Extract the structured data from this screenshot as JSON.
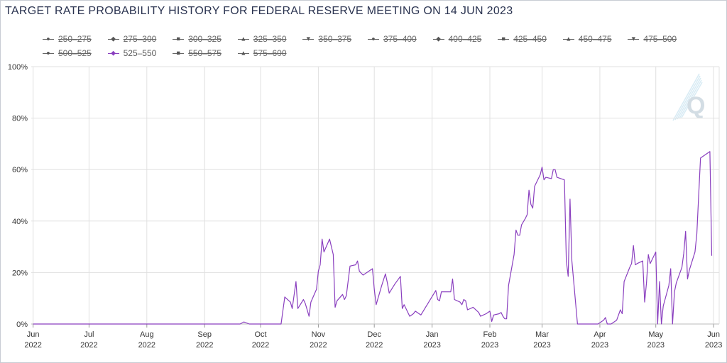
{
  "chart_data": {
    "type": "line",
    "title": "TARGET RATE PROBABILITY HISTORY FOR FEDERAL RESERVE MEETING ON 14 JUN 2023",
    "ylim": [
      0,
      100
    ],
    "yticks": [
      "0%",
      "20%",
      "40%",
      "60%",
      "80%",
      "100%"
    ],
    "ytick_values": [
      0,
      20,
      40,
      60,
      80,
      100
    ],
    "xlim": [
      "2022-05-31",
      "2023-06-04"
    ],
    "xticks": [
      {
        "date": "2022-06-01",
        "line1": "Jun",
        "line2": "2022"
      },
      {
        "date": "2022-07-01",
        "line1": "Jul",
        "line2": "2022"
      },
      {
        "date": "2022-08-01",
        "line1": "Aug",
        "line2": "2022"
      },
      {
        "date": "2022-09-01",
        "line1": "Sep",
        "line2": "2022"
      },
      {
        "date": "2022-10-01",
        "line1": "Oct",
        "line2": "2022"
      },
      {
        "date": "2022-11-01",
        "line1": "Nov",
        "line2": "2022"
      },
      {
        "date": "2022-12-01",
        "line1": "Dec",
        "line2": "2022"
      },
      {
        "date": "2023-01-01",
        "line1": "Jan",
        "line2": "2023"
      },
      {
        "date": "2023-02-01",
        "line1": "Feb",
        "line2": "2023"
      },
      {
        "date": "2023-03-01",
        "line1": "Mar",
        "line2": "2023"
      },
      {
        "date": "2023-04-01",
        "line1": "Apr",
        "line2": "2023"
      },
      {
        "date": "2023-05-01",
        "line1": "May",
        "line2": "2023"
      },
      {
        "date": "2023-06-01",
        "line1": "Jun",
        "line2": "2023"
      }
    ],
    "grid": true,
    "legend_position": "top",
    "legend": [
      {
        "label": "250–275",
        "marker": "circle",
        "visible": false
      },
      {
        "label": "275–300",
        "marker": "diamond",
        "visible": false
      },
      {
        "label": "300–325",
        "marker": "square",
        "visible": false
      },
      {
        "label": "325–350",
        "marker": "triangle",
        "visible": false
      },
      {
        "label": "350–375",
        "marker": "triangle-down",
        "visible": false
      },
      {
        "label": "375–400",
        "marker": "circle",
        "visible": false
      },
      {
        "label": "400–425",
        "marker": "diamond",
        "visible": false
      },
      {
        "label": "425–450",
        "marker": "square",
        "visible": false
      },
      {
        "label": "450–475",
        "marker": "triangle",
        "visible": false
      },
      {
        "label": "475–500",
        "marker": "triangle-down",
        "visible": false
      },
      {
        "label": "500–525",
        "marker": "circle",
        "visible": false
      },
      {
        "label": "525–550",
        "marker": "diamond",
        "visible": true
      },
      {
        "label": "550–575",
        "marker": "square",
        "visible": false
      },
      {
        "label": "575–600",
        "marker": "triangle",
        "visible": false
      }
    ],
    "colors": {
      "series": "#8a3fbf",
      "grid": "#e0e0e0",
      "axis": "#c8ccd4",
      "title": "#2a3350"
    },
    "series": [
      {
        "name": "525–550",
        "points": [
          [
            "2022-06-01",
            0
          ],
          [
            "2022-07-01",
            0
          ],
          [
            "2022-08-01",
            0
          ],
          [
            "2022-09-01",
            0
          ],
          [
            "2022-09-20",
            0
          ],
          [
            "2022-09-22",
            0.8
          ],
          [
            "2022-09-25",
            0
          ],
          [
            "2022-10-01",
            0
          ],
          [
            "2022-10-12",
            0
          ],
          [
            "2022-10-14",
            10.5
          ],
          [
            "2022-10-17",
            8.5
          ],
          [
            "2022-10-18",
            6
          ],
          [
            "2022-10-20",
            16.5
          ],
          [
            "2022-10-21",
            6
          ],
          [
            "2022-10-24",
            9.5
          ],
          [
            "2022-10-25",
            8
          ],
          [
            "2022-10-27",
            3
          ],
          [
            "2022-10-28",
            8.5
          ],
          [
            "2022-10-31",
            13.5
          ],
          [
            "2022-11-01",
            20.5
          ],
          [
            "2022-11-02",
            23
          ],
          [
            "2022-11-03",
            33
          ],
          [
            "2022-11-04",
            28
          ],
          [
            "2022-11-07",
            33
          ],
          [
            "2022-11-09",
            27
          ],
          [
            "2022-11-10",
            6.5
          ],
          [
            "2022-11-11",
            9
          ],
          [
            "2022-11-14",
            11.5
          ],
          [
            "2022-11-15",
            9.5
          ],
          [
            "2022-11-16",
            11
          ],
          [
            "2022-11-18",
            22.5
          ],
          [
            "2022-11-21",
            23
          ],
          [
            "2022-11-22",
            24.5
          ],
          [
            "2022-11-23",
            20.5
          ],
          [
            "2022-11-25",
            19
          ],
          [
            "2022-11-28",
            20.5
          ],
          [
            "2022-11-30",
            21.5
          ],
          [
            "2022-12-01",
            13.5
          ],
          [
            "2022-12-02",
            7.5
          ],
          [
            "2022-12-05",
            15
          ],
          [
            "2022-12-07",
            19.5
          ],
          [
            "2022-12-08",
            16
          ],
          [
            "2022-12-09",
            12
          ],
          [
            "2022-12-12",
            15.5
          ],
          [
            "2022-12-15",
            18.5
          ],
          [
            "2022-12-16",
            6
          ],
          [
            "2022-12-17",
            7.5
          ],
          [
            "2022-12-20",
            3
          ],
          [
            "2022-12-22",
            4
          ],
          [
            "2022-12-23",
            5
          ],
          [
            "2022-12-26",
            3.5
          ],
          [
            "2023-01-03",
            13
          ],
          [
            "2023-01-04",
            9.5
          ],
          [
            "2023-01-05",
            9
          ],
          [
            "2023-01-06",
            12.5
          ],
          [
            "2023-01-09",
            12.5
          ],
          [
            "2023-01-11",
            12.5
          ],
          [
            "2023-01-12",
            17.5
          ],
          [
            "2023-01-13",
            9.5
          ],
          [
            "2023-01-16",
            8.5
          ],
          [
            "2023-01-17",
            7.5
          ],
          [
            "2023-01-18",
            9.5
          ],
          [
            "2023-01-19",
            9
          ],
          [
            "2023-01-20",
            5.5
          ],
          [
            "2023-01-23",
            6.5
          ],
          [
            "2023-01-26",
            4.5
          ],
          [
            "2023-01-27",
            3
          ],
          [
            "2023-01-30",
            4
          ],
          [
            "2023-02-01",
            5
          ],
          [
            "2023-02-02",
            1
          ],
          [
            "2023-02-03",
            3.5
          ],
          [
            "2023-02-06",
            4
          ],
          [
            "2023-02-07",
            4.5
          ],
          [
            "2023-02-08",
            3
          ],
          [
            "2023-02-09",
            2
          ],
          [
            "2023-02-10",
            2
          ],
          [
            "2023-02-11",
            15
          ],
          [
            "2023-02-14",
            27
          ],
          [
            "2023-02-15",
            36.5
          ],
          [
            "2023-02-16",
            34.5
          ],
          [
            "2023-02-17",
            34.5
          ],
          [
            "2023-02-18",
            38.5
          ],
          [
            "2023-02-20",
            41
          ],
          [
            "2023-02-21",
            42.5
          ],
          [
            "2023-02-22",
            52
          ],
          [
            "2023-02-23",
            46.5
          ],
          [
            "2023-02-24",
            45
          ],
          [
            "2023-02-25",
            53.5
          ],
          [
            "2023-02-28",
            58
          ],
          [
            "2023-03-01",
            61
          ],
          [
            "2023-03-02",
            56
          ],
          [
            "2023-03-03",
            57
          ],
          [
            "2023-03-06",
            56.5
          ],
          [
            "2023-03-07",
            60
          ],
          [
            "2023-03-08",
            60
          ],
          [
            "2023-03-09",
            57
          ],
          [
            "2023-03-13",
            56
          ],
          [
            "2023-03-14",
            24.5
          ],
          [
            "2023-03-15",
            18.5
          ],
          [
            "2023-03-16",
            48.5
          ],
          [
            "2023-03-17",
            24.5
          ],
          [
            "2023-03-20",
            0
          ],
          [
            "2023-03-24",
            0
          ],
          [
            "2023-03-31",
            0
          ],
          [
            "2023-04-03",
            1.5
          ],
          [
            "2023-04-04",
            2.5
          ],
          [
            "2023-04-05",
            0
          ],
          [
            "2023-04-06",
            0
          ],
          [
            "2023-04-07",
            0
          ],
          [
            "2023-04-10",
            1.5
          ],
          [
            "2023-04-11",
            3.5
          ],
          [
            "2023-04-12",
            5.5
          ],
          [
            "2023-04-13",
            4
          ],
          [
            "2023-04-14",
            16.5
          ],
          [
            "2023-04-17",
            22
          ],
          [
            "2023-04-18",
            23.5
          ],
          [
            "2023-04-19",
            30.5
          ],
          [
            "2023-04-20",
            23
          ],
          [
            "2023-04-21",
            23.5
          ],
          [
            "2023-04-24",
            24.5
          ],
          [
            "2023-04-25",
            8.5
          ],
          [
            "2023-04-26",
            16
          ],
          [
            "2023-04-27",
            27
          ],
          [
            "2023-04-28",
            23.5
          ],
          [
            "2023-05-01",
            28
          ],
          [
            "2023-05-02",
            0
          ],
          [
            "2023-05-03",
            16.5
          ],
          [
            "2023-05-04",
            0
          ],
          [
            "2023-05-05",
            7
          ],
          [
            "2023-05-08",
            15
          ],
          [
            "2023-05-09",
            21.5
          ],
          [
            "2023-05-10",
            0
          ],
          [
            "2023-05-11",
            12.5
          ],
          [
            "2023-05-12",
            16
          ],
          [
            "2023-05-15",
            22
          ],
          [
            "2023-05-16",
            27.5
          ],
          [
            "2023-05-17",
            36
          ],
          [
            "2023-05-18",
            17.5
          ],
          [
            "2023-05-19",
            21
          ],
          [
            "2023-05-22",
            28
          ],
          [
            "2023-05-23",
            35
          ],
          [
            "2023-05-24",
            50
          ],
          [
            "2023-05-25",
            64.5
          ],
          [
            "2023-05-26",
            65
          ],
          [
            "2023-05-30",
            67
          ],
          [
            "2023-05-31",
            26.5
          ]
        ]
      }
    ]
  }
}
